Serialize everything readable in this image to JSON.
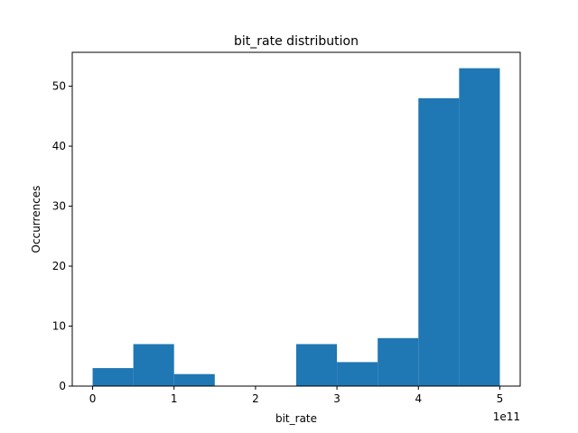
{
  "chart_data": {
    "type": "bar",
    "title": "bit_rate distribution",
    "xlabel": "bit_rate",
    "ylabel": "Occurrences",
    "x_offset_label": "1e11",
    "bin_edges": [
      0,
      0.5,
      1.0,
      1.5,
      2.0,
      2.5,
      3.0,
      3.5,
      4.0,
      4.5,
      5.0
    ],
    "values": [
      3,
      7,
      2,
      0,
      0,
      7,
      4,
      8,
      48,
      53
    ],
    "xlim": [
      -0.25,
      5.25
    ],
    "ylim": [
      0,
      55.65
    ],
    "x_ticks": [
      0,
      1,
      2,
      3,
      4,
      5
    ],
    "x_tick_labels": [
      "0",
      "1",
      "2",
      "3",
      "4",
      "5"
    ],
    "y_ticks": [
      0,
      10,
      20,
      30,
      40,
      50
    ],
    "y_tick_labels": [
      "0",
      "10",
      "20",
      "30",
      "40",
      "50"
    ],
    "bar_color": "#1f77b4",
    "grid": false
  }
}
